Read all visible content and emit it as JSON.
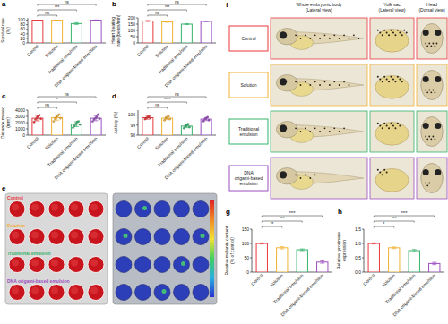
{
  "chart_data": [
    {
      "panel": "a",
      "type": "bar",
      "ylabel": "Survival rate (%)",
      "categories": [
        "Control",
        "Solution",
        "Traditional emulsion",
        "DNA origami-based emulsion"
      ],
      "values": [
        100,
        100,
        85,
        100
      ],
      "errors": [
        0,
        0,
        4,
        1
      ],
      "colors": [
        "#e8383d",
        "#f2b134",
        "#35b36b",
        "#9b4fc0"
      ],
      "ylim": [
        0,
        110
      ],
      "yticks": [
        0,
        20,
        40,
        60,
        80,
        100
      ],
      "annotations": [
        "ns",
        "***",
        "ns"
      ]
    },
    {
      "panel": "b",
      "type": "bar",
      "ylabel": "Heart beating rate (beats/min)",
      "categories": [
        "Control",
        "Solution",
        "Traditional emulsion",
        "DNA origami-based emulsion"
      ],
      "values": [
        175,
        168,
        150,
        172
      ],
      "errors": [
        4,
        3,
        4,
        3
      ],
      "colors": [
        "#e8383d",
        "#f2b134",
        "#35b36b",
        "#9b4fc0"
      ],
      "ylim": [
        0,
        200
      ],
      "yticks": [
        0,
        50,
        100,
        150,
        200
      ],
      "annotations": [
        "ns",
        "***",
        "ns"
      ]
    },
    {
      "panel": "c",
      "type": "bar",
      "ylabel": "Distance moved (mm)",
      "categories": [
        "Control",
        "Solution",
        "Traditional emulsion",
        "DNA origami-based emulsion"
      ],
      "values": [
        2700,
        2800,
        1750,
        2700
      ],
      "errors": [
        420,
        420,
        380,
        400
      ],
      "points": [
        [
          2100,
          2500,
          2800,
          3000,
          3200,
          2600
        ],
        [
          2200,
          2600,
          2900,
          3100,
          3300,
          2700
        ],
        [
          1200,
          1500,
          1800,
          2100,
          2200,
          1700
        ],
        [
          2200,
          2500,
          2700,
          2900,
          3300,
          2600
        ]
      ],
      "colors": [
        "#e8383d",
        "#f2b134",
        "#35b36b",
        "#9b4fc0"
      ],
      "ylim": [
        0,
        4000
      ],
      "yticks": [
        0,
        1000,
        2000,
        3000,
        4000
      ],
      "annotations": [
        "ns",
        "*",
        "ns"
      ]
    },
    {
      "panel": "d",
      "type": "bar",
      "ylabel": "Activity (%)",
      "categories": [
        "Control",
        "Solution",
        "Traditional emulsion",
        "DNA origami-based emulsion"
      ],
      "values": [
        99.74,
        99.7,
        98.9,
        99.6
      ],
      "errors": [
        0.15,
        0.15,
        0.15,
        0.15
      ],
      "points": [
        [
          99.6,
          99.7,
          99.8,
          99.9,
          99.7
        ],
        [
          99.5,
          99.7,
          99.8,
          99.9,
          99.6
        ],
        [
          98.7,
          98.9,
          99.0,
          99.1,
          98.8
        ],
        [
          99.4,
          99.6,
          99.7,
          99.8,
          99.5
        ]
      ],
      "colors": [
        "#e8383d",
        "#f2b134",
        "#35b36b",
        "#9b4fc0"
      ],
      "ylim": [
        98,
        100.5
      ],
      "yticks": [
        98,
        99,
        100
      ],
      "annotations": [
        "ns",
        "****",
        "ns"
      ]
    },
    {
      "panel": "g",
      "type": "bar",
      "ylabel": "Relative melanin content (% of control)",
      "categories": [
        "Control",
        "Solution",
        "Traditional emulsion",
        "DNA origami-based emulsion"
      ],
      "values": [
        100,
        85,
        78,
        35
      ],
      "errors": [
        2,
        4,
        3,
        4
      ],
      "colors": [
        "#e8383d",
        "#f2b134",
        "#35b36b",
        "#9b4fc0"
      ],
      "ylim": [
        0,
        150
      ],
      "yticks": [
        0,
        50,
        100,
        150
      ],
      "annotations": [
        "**",
        "***",
        "****"
      ]
    },
    {
      "panel": "h",
      "type": "bar",
      "ylabel": "Relative tyrosinase expression",
      "categories": [
        "Control",
        "Solution",
        "Traditional emulsion",
        "DNA origami-based emulsion"
      ],
      "values": [
        1.0,
        0.85,
        0.75,
        0.3
      ],
      "errors": [
        0.02,
        0.03,
        0.04,
        0.04
      ],
      "colors": [
        "#e8383d",
        "#f2b134",
        "#35b36b",
        "#9b4fc0"
      ],
      "ylim": [
        0,
        1.5
      ],
      "yticks": [
        {
          "value": 0,
          "label": "0.0"
        },
        {
          "value": 0.5,
          "label": "0.5"
        },
        {
          "value": 1,
          "label": "1.0"
        },
        {
          "value": 1.5,
          "label": "1.5"
        }
      ],
      "annotations": [
        "*",
        "***",
        "****"
      ]
    }
  ],
  "panel_e": {
    "panel": "e",
    "row_labels": [
      "Control",
      "Solution",
      "Traditional emulsion",
      "DNA origami-based emulsion"
    ],
    "colors": [
      "#e8383d",
      "#f2b134",
      "#35b36b",
      "#9b4fc0"
    ]
  },
  "panel_f": {
    "panel": "f",
    "column_headers": [
      "Whole embryonic body",
      "Yolk sac",
      "Head"
    ],
    "column_subheaders": [
      "(Lateral view)",
      "(Lateral view)",
      "(Dorsal view)"
    ],
    "row_labels": [
      "Control",
      "Solution",
      "Traditional emulsion",
      "DNA origami-based emulsion"
    ],
    "colors": [
      "#e8383d",
      "#f2b134",
      "#35b36b",
      "#9b4fc0"
    ]
  }
}
